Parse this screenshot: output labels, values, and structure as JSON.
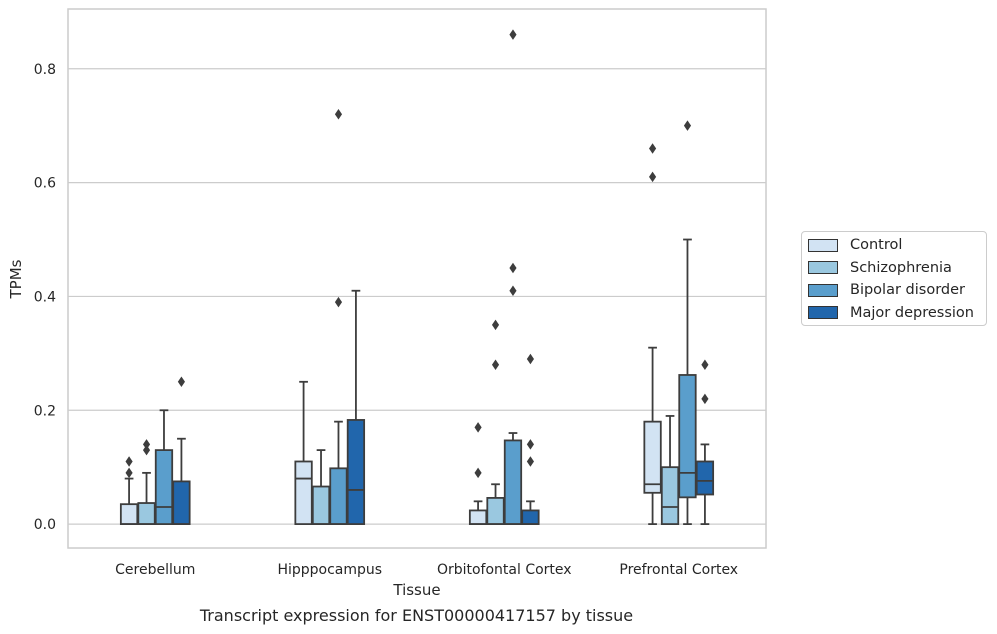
{
  "chart_data": {
    "type": "box",
    "title": "",
    "caption": "Transcript expression for ENST00000417157 by tissue",
    "xlabel": "Tissue",
    "ylabel": "TPMs",
    "ylim": [
      -0.042,
      0.905
    ],
    "yticks": [
      "0.0",
      "0.2",
      "0.4",
      "0.6",
      "0.8"
    ],
    "ytick_values": [
      0,
      0.2,
      0.4,
      0.6,
      0.8
    ],
    "grid": "horizontal",
    "legend_position": "right",
    "categories": [
      "Cerebellum",
      "Hipppocampus",
      "Orbitofontal Cortex",
      "Prefrontal Cortex"
    ],
    "series": [
      {
        "name": "Control",
        "color": "#d2e3f3",
        "boxes": [
          {
            "min": 0,
            "q1": 0,
            "median": 0,
            "q3": 0.035,
            "max": 0.08,
            "outliers": [
              0.09,
              0.11
            ]
          },
          {
            "min": 0,
            "q1": 0,
            "median": 0.08,
            "q3": 0.11,
            "max": 0.25,
            "outliers": []
          },
          {
            "min": 0,
            "q1": 0,
            "median": 0,
            "q3": 0.024,
            "max": 0.04,
            "outliers": [
              0.09,
              0.17
            ]
          },
          {
            "min": 0,
            "q1": 0.055,
            "median": 0.07,
            "q3": 0.18,
            "max": 0.31,
            "outliers": [
              0.61,
              0.66
            ]
          }
        ]
      },
      {
        "name": "Schizophrenia",
        "color": "#9ac8e0",
        "boxes": [
          {
            "min": 0,
            "q1": 0,
            "median": 0,
            "q3": 0.037,
            "max": 0.09,
            "outliers": [
              0.13,
              0.14
            ]
          },
          {
            "min": 0,
            "q1": 0,
            "median": 0,
            "q3": 0.066,
            "max": 0.13,
            "outliers": []
          },
          {
            "min": 0,
            "q1": 0,
            "median": 0,
            "q3": 0.046,
            "max": 0.07,
            "outliers": [
              0.28,
              0.35
            ]
          },
          {
            "min": 0,
            "q1": 0,
            "median": 0.03,
            "q3": 0.1,
            "max": 0.19,
            "outliers": []
          }
        ]
      },
      {
        "name": "Bipolar disorder",
        "color": "#5a9ecc",
        "boxes": [
          {
            "min": 0,
            "q1": 0,
            "median": 0.03,
            "q3": 0.13,
            "max": 0.2,
            "outliers": []
          },
          {
            "min": 0,
            "q1": 0,
            "median": 0,
            "q3": 0.098,
            "max": 0.18,
            "outliers": [
              0.39,
              0.72
            ]
          },
          {
            "min": 0,
            "q1": 0,
            "median": 0,
            "q3": 0.147,
            "max": 0.16,
            "outliers": [
              0.41,
              0.45,
              0.86
            ]
          },
          {
            "min": 0,
            "q1": 0.047,
            "median": 0.09,
            "q3": 0.262,
            "max": 0.5,
            "outliers": [
              0.7
            ]
          }
        ]
      },
      {
        "name": "Major depression",
        "color": "#2166ac",
        "boxes": [
          {
            "min": 0,
            "q1": 0,
            "median": 0,
            "q3": 0.075,
            "max": 0.15,
            "outliers": [
              0.25
            ]
          },
          {
            "min": 0,
            "q1": 0,
            "median": 0.06,
            "q3": 0.183,
            "max": 0.41,
            "outliers": []
          },
          {
            "min": 0,
            "q1": 0,
            "median": 0,
            "q3": 0.024,
            "max": 0.04,
            "outliers": [
              0.11,
              0.14,
              0.29
            ]
          },
          {
            "min": 0,
            "q1": 0.052,
            "median": 0.076,
            "q3": 0.11,
            "max": 0.14,
            "outliers": [
              0.22,
              0.28
            ]
          }
        ]
      }
    ]
  }
}
